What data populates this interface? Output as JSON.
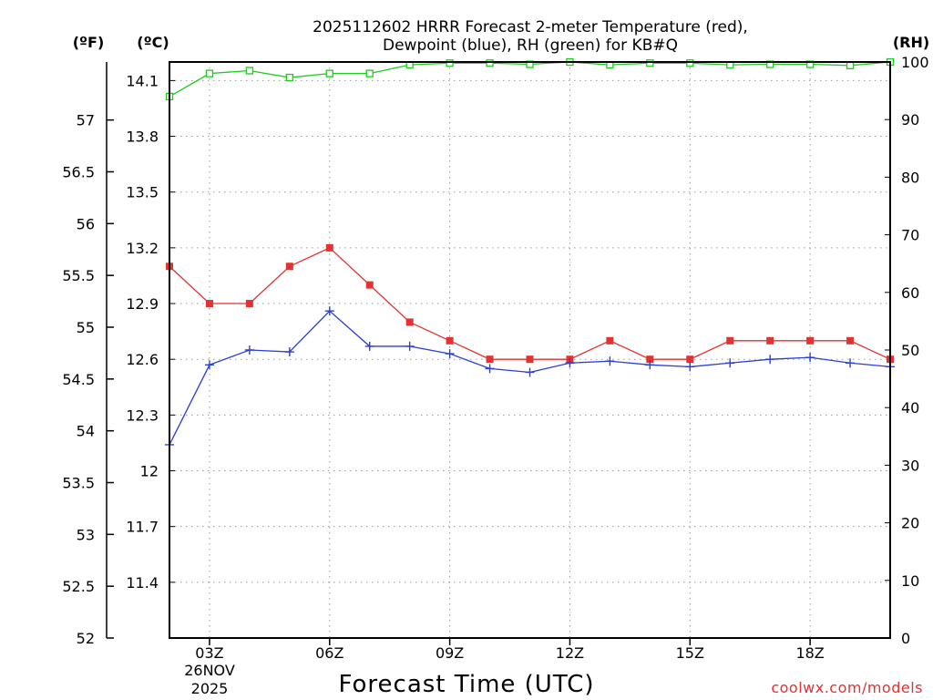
{
  "title": {
    "line1": "2025112602 HRRR Forecast 2-meter Temperature (red),",
    "line2": "Dewpoint (blue), RH (green) for KB#Q"
  },
  "units": {
    "fahrenheit": "(ºF)",
    "celsius": "(ºC)",
    "rh": "(RH)"
  },
  "xaxis": {
    "label": "Forecast Time (UTC)",
    "ticks": [
      "03Z",
      "06Z",
      "09Z",
      "12Z",
      "15Z",
      "18Z"
    ],
    "date_day": "26NOV",
    "date_year": "2025"
  },
  "credit": "coolwx.com/models",
  "colors": {
    "temperature": "#e23232",
    "dewpoint": "#2a3ed8",
    "rh": "#1ecc1e"
  },
  "chart_data": {
    "type": "line",
    "title": "2025112602 HRRR Forecast 2-meter Temperature (red), Dewpoint (blue), RH (green) for KB#Q",
    "xlabel": "Forecast Time (UTC)",
    "x": [
      "02Z",
      "03Z",
      "04Z",
      "05Z",
      "06Z",
      "07Z",
      "08Z",
      "09Z",
      "10Z",
      "11Z",
      "12Z",
      "13Z",
      "14Z",
      "15Z",
      "16Z",
      "17Z",
      "18Z",
      "19Z",
      "20Z"
    ],
    "xlim_hours": [
      2,
      20
    ],
    "y_left_celsius": {
      "label": "(ºC)",
      "lim": [
        11.1,
        14.2
      ],
      "ticks": [
        "11.4",
        "11.7",
        "12",
        "12.3",
        "12.6",
        "12.9",
        "13.2",
        "13.5",
        "13.8",
        "14.1"
      ]
    },
    "y_left_fahrenheit": {
      "label": "(ºF)",
      "lim": [
        52,
        57.56
      ],
      "ticks": [
        "52",
        "52.5",
        "53",
        "53.5",
        "54",
        "54.5",
        "55",
        "55.5",
        "56",
        "56.5",
        "57"
      ]
    },
    "y_right_rh": {
      "label": "(RH)",
      "lim": [
        0,
        100
      ],
      "ticks": [
        "0",
        "10",
        "20",
        "30",
        "40",
        "50",
        "60",
        "70",
        "80",
        "90",
        "100"
      ]
    },
    "series": [
      {
        "name": "Temperature",
        "axis": "celsius",
        "marker": "square",
        "values": [
          13.1,
          12.9,
          12.9,
          13.1,
          13.2,
          13.0,
          12.8,
          12.7,
          12.6,
          12.6,
          12.6,
          12.7,
          12.6,
          12.6,
          12.7,
          12.7,
          12.7,
          12.7,
          12.6
        ]
      },
      {
        "name": "Dewpoint",
        "axis": "celsius",
        "marker": "plus",
        "values": [
          12.14,
          12.57,
          12.65,
          12.64,
          12.86,
          12.67,
          12.67,
          12.63,
          12.55,
          12.53,
          12.58,
          12.59,
          12.57,
          12.56,
          12.58,
          12.6,
          12.61,
          12.58,
          12.56
        ]
      },
      {
        "name": "RH",
        "axis": "rh",
        "marker": "open-square",
        "values": [
          94,
          98,
          98.5,
          97.3,
          98,
          98,
          99.5,
          99.8,
          99.8,
          99.6,
          100,
          99.5,
          99.8,
          99.8,
          99.5,
          99.6,
          99.6,
          99.4,
          100
        ]
      }
    ]
  }
}
